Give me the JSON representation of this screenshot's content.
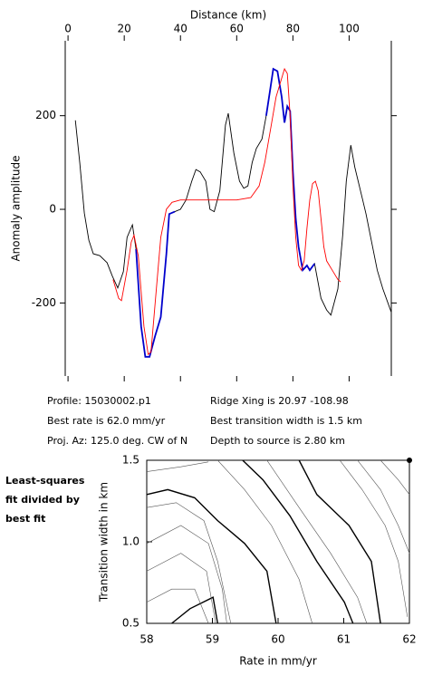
{
  "chart_data": [
    {
      "type": "line",
      "xlabel": "Distance (km)",
      "ylabel": "Anomaly amplitude",
      "xlim": [
        -1,
        115
      ],
      "ylim": [
        -356,
        360
      ],
      "xticks": [
        0,
        20,
        40,
        60,
        80,
        100
      ],
      "yticks": [
        -200,
        0,
        200
      ],
      "series": [
        {
          "color": "#000000",
          "x": [
            2.6,
            4.2,
            5.8,
            7.4,
            9,
            11.3,
            13.9,
            15.8,
            17.7,
            19.7,
            21,
            22.9,
            24.2,
            26,
            27.5,
            29,
            31,
            33,
            35,
            36,
            38,
            40,
            42,
            44,
            45.5,
            47,
            49,
            50.5,
            52,
            54,
            56,
            57,
            59,
            61,
            62.5,
            64,
            65.5,
            67,
            69,
            70.5,
            72,
            73,
            74.5,
            76,
            77,
            78,
            79,
            80,
            81,
            82,
            83.5,
            85,
            86,
            87.7,
            90,
            92,
            93.5,
            96,
            97.7,
            99,
            100.6,
            102,
            104.8,
            106,
            108,
            110,
            112,
            115
          ],
          "values": [
            190,
            99,
            -8,
            -66,
            -95,
            -99,
            -114,
            -143,
            -168,
            -133,
            -60,
            -33,
            -85,
            -250,
            -315,
            -315,
            -270,
            -230,
            -95,
            -10,
            -5,
            0,
            20,
            60,
            85,
            80,
            60,
            0,
            -5,
            40,
            180,
            205,
            120,
            60,
            45,
            50,
            100,
            130,
            150,
            200,
            260,
            300,
            295,
            240,
            185,
            220,
            210,
            80,
            -20,
            -80,
            -130,
            -120,
            -130,
            -116,
            -190,
            -215,
            -226,
            -170,
            -56,
            60,
            137,
            90,
            21,
            -10,
            -70,
            -130,
            -170,
            -220
          ]
        },
        {
          "color": "#0000cc",
          "x": [
            24.2,
            26,
            27.5,
            29,
            31,
            33,
            35,
            36,
            38,
            null,
            70.5,
            72,
            73,
            74.5,
            76,
            77,
            78,
            79,
            80,
            81,
            82,
            83.5,
            85,
            86,
            87.7
          ],
          "values": [
            -85,
            -250,
            -315,
            -315,
            -270,
            -230,
            -95,
            -10,
            -5,
            null,
            200,
            260,
            300,
            295,
            240,
            185,
            220,
            210,
            80,
            -20,
            -80,
            -130,
            -120,
            -130,
            -116
          ]
        },
        {
          "color": "#ff0000",
          "x": [
            16,
            18,
            19,
            21,
            22.5,
            23.5,
            25,
            27,
            28.5,
            29.5,
            31,
            33,
            35,
            37,
            40,
            50,
            60,
            65,
            68,
            70,
            72,
            74,
            76,
            77,
            78,
            79,
            80,
            81,
            82,
            83,
            84,
            85,
            86,
            87,
            88,
            89,
            90,
            91,
            92,
            94,
            96,
            97
          ],
          "values": [
            -150,
            -190,
            -195,
            -130,
            -70,
            -55,
            -100,
            -250,
            -310,
            -305,
            -200,
            -60,
            0,
            15,
            20,
            20,
            20,
            25,
            50,
            100,
            170,
            240,
            280,
            300,
            290,
            200,
            50,
            -60,
            -120,
            -130,
            -110,
            -40,
            20,
            55,
            60,
            40,
            -20,
            -80,
            -110,
            -130,
            -150,
            -155
          ]
        }
      ],
      "annotations": [
        "Profile: 15030002.p1",
        "Best rate is 62.0 mm/yr",
        "Proj. Az: 125.0 deg. CW of N",
        "Ridge Xing is 20.97 -108.98",
        "Best transition width is 1.5 km",
        "Depth to source is   2.80 km"
      ]
    },
    {
      "type": "contour",
      "xlabel": "Rate in mm/yr",
      "ylabel": "Transition width in km",
      "note": [
        "Least-squares",
        "fit divided by",
        "best fit"
      ],
      "xlim": [
        58,
        62
      ],
      "ylim": [
        0.5,
        1.5
      ],
      "xticks": [
        58,
        59,
        60,
        61,
        62
      ],
      "yticks": [
        {
          "value": 0.5,
          "label": "0.5"
        },
        {
          "value": 1.0,
          "label": "1.0"
        },
        {
          "value": 1.5,
          "label": "1.5"
        }
      ],
      "marker": {
        "x": 62,
        "y": 1.5
      },
      "series": [
        {
          "color": "#000000",
          "x": [
            58,
            58.32,
            58.73,
            59.08,
            59.49,
            59.83,
            59.97
          ],
          "y": [
            1.29,
            1.32,
            1.27,
            1.13,
            0.99,
            0.82,
            0.5
          ]
        },
        {
          "color": "#000000",
          "x": [
            59.46,
            59.77,
            60.18,
            60.59,
            61.01,
            61.14
          ],
          "y": [
            1.5,
            1.38,
            1.16,
            0.88,
            0.63,
            0.5
          ]
        },
        {
          "color": "#000000",
          "x": [
            60.32,
            60.59,
            61.08,
            61.42,
            61.56
          ],
          "y": [
            1.5,
            1.29,
            1.1,
            0.88,
            0.5
          ]
        },
        {
          "color": "#000000",
          "x": [
            58.38,
            58.66,
            59.01,
            59.08
          ],
          "y": [
            0.5,
            0.59,
            0.66,
            0.5
          ]
        },
        {
          "color": "#555555",
          "x": [
            58,
            58.52,
            58.94
          ],
          "y": [
            1.43,
            1.46,
            1.49
          ]
        },
        {
          "color": "#555555",
          "x": [
            58,
            58.45,
            58.87,
            59.08,
            59.28
          ],
          "y": [
            1.21,
            1.24,
            1.13,
            0.88,
            0.5
          ]
        },
        {
          "color": "#555555",
          "x": [
            58,
            58.52,
            58.94,
            59.15,
            59.22
          ],
          "y": [
            0.99,
            1.1,
            0.99,
            0.71,
            0.5
          ]
        },
        {
          "color": "#555555",
          "x": [
            58,
            58.52,
            58.91,
            59.05
          ],
          "y": [
            0.82,
            0.93,
            0.82,
            0.5
          ]
        },
        {
          "color": "#555555",
          "x": [
            58,
            58.38,
            58.73,
            58.94
          ],
          "y": [
            0.63,
            0.71,
            0.71,
            0.5
          ]
        },
        {
          "color": "#555555",
          "x": [
            59.08,
            59.49,
            59.9,
            60.32,
            60.52
          ],
          "y": [
            1.5,
            1.32,
            1.1,
            0.77,
            0.5
          ]
        },
        {
          "color": "#555555",
          "x": [
            59.83,
            60.32,
            60.8,
            61.21,
            61.35
          ],
          "y": [
            1.5,
            1.21,
            0.93,
            0.66,
            0.5
          ]
        },
        {
          "color": "#555555",
          "x": [
            60.94,
            61.28,
            61.63,
            61.83,
            61.97
          ],
          "y": [
            1.5,
            1.32,
            1.1,
            0.88,
            0.54
          ]
        },
        {
          "color": "#555555",
          "x": [
            61.21,
            61.56,
            61.83,
            62
          ],
          "y": [
            1.5,
            1.32,
            1.1,
            0.93
          ]
        },
        {
          "color": "#555555",
          "x": [
            61.56,
            61.83,
            62
          ],
          "y": [
            1.5,
            1.38,
            1.29
          ]
        }
      ]
    }
  ]
}
